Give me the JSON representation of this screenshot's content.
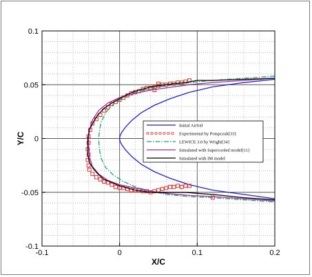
{
  "chart_data": {
    "type": "line",
    "xlabel": "X/C",
    "ylabel": "Y/C",
    "xlim": [
      -0.1,
      0.2
    ],
    "ylim": [
      -0.1,
      0.1
    ],
    "x_ticks": [
      -0.1,
      0,
      0.1,
      0.2
    ],
    "y_ticks": [
      -0.1,
      -0.05,
      0,
      0.05,
      0.1
    ],
    "x_tick_labels": [
      "-0.1",
      "0",
      "0.1",
      "0.2"
    ],
    "y_tick_labels": [
      "-0.1",
      "-0.05",
      "0",
      "0.05",
      "0.1"
    ],
    "grid": "major and minor, dotted",
    "legend_position": "center-right",
    "series": [
      {
        "name": "Initial Airfoil",
        "color": "#1f1fd6",
        "style": "solid",
        "x": [
          0.2,
          0.16,
          0.12,
          0.09,
          0.065,
          0.045,
          0.028,
          0.016,
          0.008,
          0.003,
          0.0005,
          0.0,
          0.0005,
          0.003,
          0.008,
          0.016,
          0.028,
          0.045,
          0.065,
          0.09,
          0.12,
          0.16,
          0.2
        ],
        "y": [
          0.055,
          0.052,
          0.048,
          0.043,
          0.037,
          0.031,
          0.024,
          0.017,
          0.011,
          0.006,
          0.0025,
          0.0,
          -0.0025,
          -0.006,
          -0.011,
          -0.017,
          -0.024,
          -0.031,
          -0.037,
          -0.043,
          -0.048,
          -0.052,
          -0.056
        ]
      },
      {
        "name": "Experimental by Potapczuk[33]",
        "color": "#e8322e",
        "style": "markers",
        "x": [
          0.09,
          0.085,
          0.08,
          0.075,
          0.07,
          0.065,
          0.06,
          0.055,
          0.05,
          0.045,
          0.04,
          0.035,
          0.03,
          0.025,
          0.02,
          0.015,
          0.01,
          0.005,
          0.0,
          -0.005,
          -0.01,
          -0.015,
          -0.02,
          -0.025,
          -0.03,
          -0.035,
          -0.038,
          -0.04,
          -0.04,
          -0.041,
          -0.04,
          -0.041,
          -0.04,
          -0.039,
          -0.035,
          -0.03,
          -0.025,
          -0.02,
          -0.015,
          -0.01,
          -0.005,
          0.0,
          0.005,
          0.01,
          0.015,
          0.02,
          0.025,
          0.03,
          0.035,
          0.04,
          0.045,
          0.05,
          0.055,
          0.06,
          0.065,
          0.07,
          0.075,
          0.08,
          0.085,
          0.09,
          0.12,
          -0.02,
          0.045,
          0.05
        ],
        "y": [
          0.054,
          0.053,
          0.052,
          0.052,
          0.051,
          0.051,
          0.05,
          0.05,
          0.049,
          0.048,
          0.047,
          0.047,
          0.046,
          0.044,
          0.043,
          0.042,
          0.04,
          0.038,
          0.036,
          0.034,
          0.032,
          0.029,
          0.026,
          0.022,
          0.018,
          0.014,
          0.008,
          0.002,
          -0.004,
          -0.01,
          -0.015,
          -0.02,
          -0.025,
          -0.029,
          -0.033,
          -0.036,
          -0.038,
          -0.04,
          -0.041,
          -0.043,
          -0.045,
          -0.046,
          -0.046,
          -0.047,
          -0.048,
          -0.048,
          -0.048,
          -0.049,
          -0.049,
          -0.05,
          -0.049,
          -0.048,
          -0.047,
          -0.046,
          -0.045,
          -0.045,
          -0.044,
          -0.045,
          -0.044,
          -0.044,
          -0.055,
          -0.04,
          0.045,
          0.051
        ]
      },
      {
        "name": "LEWICE 3.0 by Wright[34]",
        "color": "#1aa86a",
        "style": "dashdot",
        "x": [
          0.2,
          0.16,
          0.12,
          0.09,
          0.06,
          0.04,
          0.02,
          0.005,
          -0.008,
          -0.018,
          -0.024,
          -0.026,
          -0.027,
          -0.026,
          -0.024,
          -0.018,
          -0.008,
          0.005,
          0.02,
          0.04,
          0.06,
          0.09,
          0.12,
          0.16,
          0.2
        ],
        "y": [
          0.058,
          0.056,
          0.054,
          0.052,
          0.049,
          0.047,
          0.043,
          0.038,
          0.032,
          0.024,
          0.015,
          0.007,
          0.0,
          -0.01,
          -0.018,
          -0.027,
          -0.034,
          -0.04,
          -0.045,
          -0.049,
          -0.052,
          -0.054,
          -0.055,
          -0.057,
          -0.059
        ]
      },
      {
        "name": "Simulated with Supercooled model[11]",
        "color": "#a52aa5",
        "style": "solid",
        "x": [
          0.2,
          0.16,
          0.12,
          0.09,
          0.06,
          0.04,
          0.02,
          0.0,
          -0.015,
          -0.027,
          -0.035,
          -0.039,
          -0.04,
          -0.04,
          -0.039,
          -0.035,
          -0.027,
          -0.015,
          0.0,
          0.02,
          0.04,
          0.06,
          0.09,
          0.12,
          0.16,
          0.2
        ],
        "y": [
          0.056,
          0.054,
          0.052,
          0.05,
          0.047,
          0.045,
          0.042,
          0.038,
          0.033,
          0.026,
          0.017,
          0.008,
          0.0,
          -0.008,
          -0.017,
          -0.026,
          -0.033,
          -0.039,
          -0.043,
          -0.046,
          -0.049,
          -0.051,
          -0.053,
          -0.054,
          -0.056,
          -0.058
        ]
      },
      {
        "name": "Simulated with IM model",
        "color": "#000000",
        "style": "solid",
        "x": [
          0.2,
          0.16,
          0.12,
          0.1,
          0.085,
          0.07,
          0.06,
          0.05,
          0.04,
          0.03,
          0.02,
          0.01,
          0.0,
          -0.01,
          -0.02,
          -0.028,
          -0.034,
          -0.039,
          -0.041,
          -0.041,
          -0.041,
          -0.039,
          -0.034,
          -0.028,
          -0.02,
          -0.01,
          0.0,
          0.01,
          0.02,
          0.03,
          0.04,
          0.05,
          0.06,
          0.07,
          0.085,
          0.1,
          0.12,
          0.16,
          0.2
        ],
        "y": [
          0.056,
          0.055,
          0.054,
          0.054,
          0.052,
          0.051,
          0.05,
          0.049,
          0.048,
          0.046,
          0.044,
          0.041,
          0.037,
          0.033,
          0.028,
          0.022,
          0.015,
          0.008,
          0.0,
          -0.008,
          -0.015,
          -0.022,
          -0.028,
          -0.033,
          -0.038,
          -0.041,
          -0.044,
          -0.046,
          -0.048,
          -0.049,
          -0.05,
          -0.05,
          -0.05,
          -0.05,
          -0.05,
          -0.051,
          -0.052,
          -0.055,
          -0.057
        ]
      }
    ]
  }
}
